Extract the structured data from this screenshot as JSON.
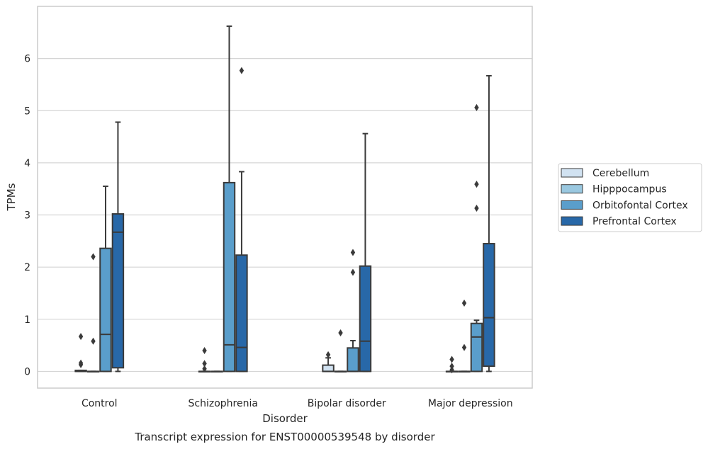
{
  "chart_data": {
    "type": "box",
    "title": "Transcript expression for ENST00000539548 by disorder",
    "xlabel": "Disorder",
    "ylabel": "TPMs",
    "categories": [
      "Control",
      "Schizophrenia",
      "Bipolar disorder",
      "Major depression"
    ],
    "ylim": [
      -0.32,
      7.0
    ],
    "yticks": [
      0,
      1,
      2,
      3,
      4,
      5,
      6
    ],
    "grid": true,
    "legend_position": "right",
    "series": [
      {
        "name": "Cerebellum",
        "color": "#d1e2f1",
        "boxes": [
          {
            "q1": 0,
            "median": 0,
            "q3": 0.02,
            "whisker_low": 0,
            "whisker_high": 0.02,
            "outliers": [
              0.13,
              0.16,
              0.67
            ]
          },
          {
            "q1": 0,
            "median": 0,
            "q3": 0,
            "whisker_low": 0,
            "whisker_high": 0,
            "outliers": [
              0.05,
              0.15,
              0.4
            ]
          },
          {
            "q1": 0,
            "median": 0,
            "q3": 0.12,
            "whisker_low": 0,
            "whisker_high": 0.26,
            "outliers": [
              0.32
            ]
          },
          {
            "q1": 0,
            "median": 0,
            "q3": 0,
            "whisker_low": 0,
            "whisker_high": 0,
            "outliers": [
              0.03,
              0.1,
              0.23
            ]
          }
        ]
      },
      {
        "name": "Hipppocampus",
        "color": "#9ac8e0",
        "boxes": [
          {
            "q1": 0,
            "median": 0,
            "q3": 0,
            "whisker_low": 0,
            "whisker_high": 0,
            "outliers": [
              0.58,
              2.2
            ]
          },
          {
            "q1": 0,
            "median": 0,
            "q3": 0,
            "whisker_low": 0,
            "whisker_high": 0,
            "outliers": []
          },
          {
            "q1": 0,
            "median": 0,
            "q3": 0,
            "whisker_low": 0,
            "whisker_high": 0,
            "outliers": [
              0.74
            ]
          },
          {
            "q1": 0,
            "median": 0,
            "q3": 0,
            "whisker_low": 0,
            "whisker_high": 0,
            "outliers": [
              0.46,
              1.31
            ]
          }
        ]
      },
      {
        "name": "Orbitofontal Cortex",
        "color": "#5a9ecb",
        "boxes": [
          {
            "q1": 0,
            "median": 0.71,
            "q3": 2.36,
            "whisker_low": 0,
            "whisker_high": 3.55,
            "outliers": []
          },
          {
            "q1": 0,
            "median": 0.51,
            "q3": 3.62,
            "whisker_low": 0,
            "whisker_high": 6.62,
            "outliers": []
          },
          {
            "q1": 0,
            "median": 0,
            "q3": 0.45,
            "whisker_low": 0,
            "whisker_high": 0.59,
            "outliers": [
              1.9,
              2.28
            ]
          },
          {
            "q1": 0,
            "median": 0.66,
            "q3": 0.92,
            "whisker_low": 0,
            "whisker_high": 0.98,
            "outliers": [
              3.13,
              3.59,
              5.06
            ]
          }
        ]
      },
      {
        "name": "Prefrontal Cortex",
        "color": "#2868a8",
        "boxes": [
          {
            "q1": 0.07,
            "median": 2.67,
            "q3": 3.02,
            "whisker_low": 0,
            "whisker_high": 4.78,
            "outliers": []
          },
          {
            "q1": 0,
            "median": 0.46,
            "q3": 2.23,
            "whisker_low": 0,
            "whisker_high": 3.83,
            "outliers": [
              5.77
            ]
          },
          {
            "q1": 0,
            "median": 0.58,
            "q3": 2.02,
            "whisker_low": 0,
            "whisker_high": 4.56,
            "outliers": []
          },
          {
            "q1": 0.1,
            "median": 1.03,
            "q3": 2.45,
            "whisker_low": 0,
            "whisker_high": 5.67,
            "outliers": []
          }
        ]
      }
    ]
  },
  "colors": {
    "grid": "#d5d5d5",
    "frame": "#cccccc",
    "line": "#3a3a3a"
  }
}
